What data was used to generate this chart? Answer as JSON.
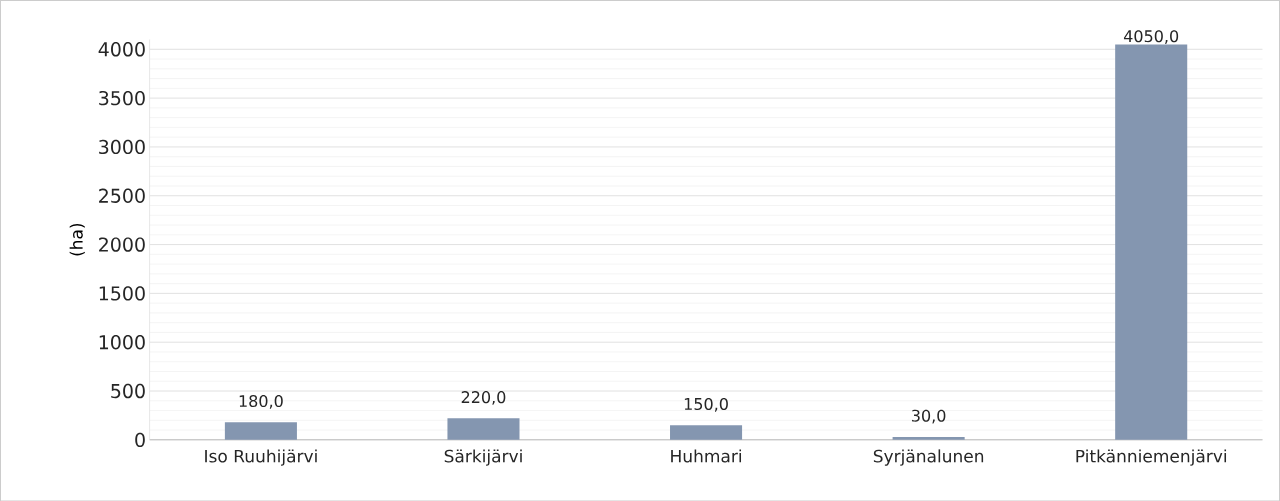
{
  "chart_data": {
    "type": "bar",
    "ylabel": "(ha)",
    "categories": [
      "Iso Ruuhijärvi",
      "Särkijärvi",
      "Huhmari",
      "Syrjänalunen",
      "Pitkänniemenjärvi"
    ],
    "values": [
      180,
      220,
      150,
      30,
      4050
    ],
    "value_labels": [
      "180,0",
      "220,0",
      "150,0",
      "30,0",
      "4050,0"
    ],
    "color": "#8496b0",
    "ylim": [
      0,
      4100
    ],
    "yticks": [
      0,
      500,
      1000,
      1500,
      2000,
      2500,
      3000,
      3500,
      4000
    ],
    "grid": "y"
  }
}
